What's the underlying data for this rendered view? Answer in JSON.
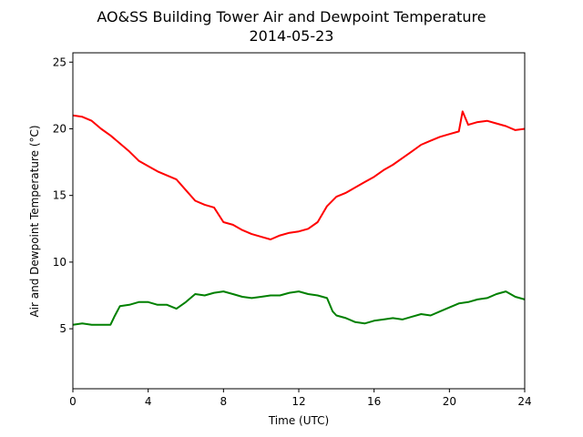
{
  "chart_data": {
    "type": "line",
    "title": "AO&SS Building Tower Air and Dewpoint Temperature",
    "subtitle": "2014-05-23",
    "xlabel": "Time (UTC)",
    "ylabel": "Air and Dewpoint Temperature (°C)",
    "xlim": [
      0,
      24
    ],
    "ylim": [
      0.5,
      25.7
    ],
    "xticks": [
      0,
      4,
      8,
      12,
      16,
      20,
      24
    ],
    "yticks": [
      5,
      10,
      15,
      20,
      25
    ],
    "grid": false,
    "legend": "none",
    "series": [
      {
        "color": "#ff0000",
        "x": [
          0,
          0.5,
          1,
          1.5,
          2,
          2.5,
          3,
          3.5,
          4,
          4.5,
          5,
          5.5,
          6,
          6.5,
          7,
          7.5,
          8,
          8.5,
          9,
          9.5,
          10,
          10.5,
          11,
          11.5,
          12,
          12.5,
          13,
          13.5,
          14,
          14.5,
          15,
          15.5,
          16,
          16.5,
          17,
          17.5,
          18,
          18.5,
          19,
          19.5,
          20,
          20.5,
          20.7,
          21,
          21.5,
          22,
          22.5,
          23,
          23.5,
          24
        ],
        "y": [
          21.0,
          20.9,
          20.6,
          20.0,
          19.5,
          18.9,
          18.3,
          17.6,
          17.2,
          16.8,
          16.5,
          16.2,
          15.4,
          14.6,
          14.3,
          14.1,
          13.0,
          12.8,
          12.4,
          12.1,
          11.9,
          11.7,
          12.0,
          12.2,
          12.3,
          12.5,
          13.0,
          14.2,
          14.9,
          15.2,
          15.6,
          16.0,
          16.4,
          16.9,
          17.3,
          17.8,
          18.3,
          18.8,
          19.1,
          19.4,
          19.6,
          19.8,
          21.3,
          20.3,
          20.5,
          20.6,
          20.4,
          20.2,
          19.9,
          20.0
        ]
      },
      {
        "color": "#008000",
        "x": [
          0,
          0.5,
          1,
          1.5,
          2,
          2.2,
          2.5,
          3,
          3.5,
          4,
          4.5,
          5,
          5.5,
          6,
          6.5,
          7,
          7.5,
          8,
          8.5,
          9,
          9.5,
          10,
          10.5,
          11,
          11.5,
          12,
          12.5,
          13,
          13.5,
          13.8,
          14,
          14.5,
          15,
          15.5,
          16,
          16.5,
          17,
          17.5,
          18,
          18.5,
          19,
          19.5,
          20,
          20.5,
          21,
          21.5,
          22,
          22.5,
          23,
          23.5,
          24
        ],
        "y": [
          5.3,
          5.4,
          5.3,
          5.3,
          5.3,
          5.9,
          6.7,
          6.8,
          7.0,
          7.0,
          6.8,
          6.8,
          6.5,
          7.0,
          7.6,
          7.5,
          7.7,
          7.8,
          7.6,
          7.4,
          7.3,
          7.4,
          7.5,
          7.5,
          7.7,
          7.8,
          7.6,
          7.5,
          7.3,
          6.3,
          6.0,
          5.8,
          5.5,
          5.4,
          5.6,
          5.7,
          5.8,
          5.7,
          5.9,
          6.1,
          6.0,
          6.3,
          6.6,
          6.9,
          7.0,
          7.2,
          7.3,
          7.6,
          7.8,
          7.4,
          7.2
        ]
      }
    ]
  }
}
